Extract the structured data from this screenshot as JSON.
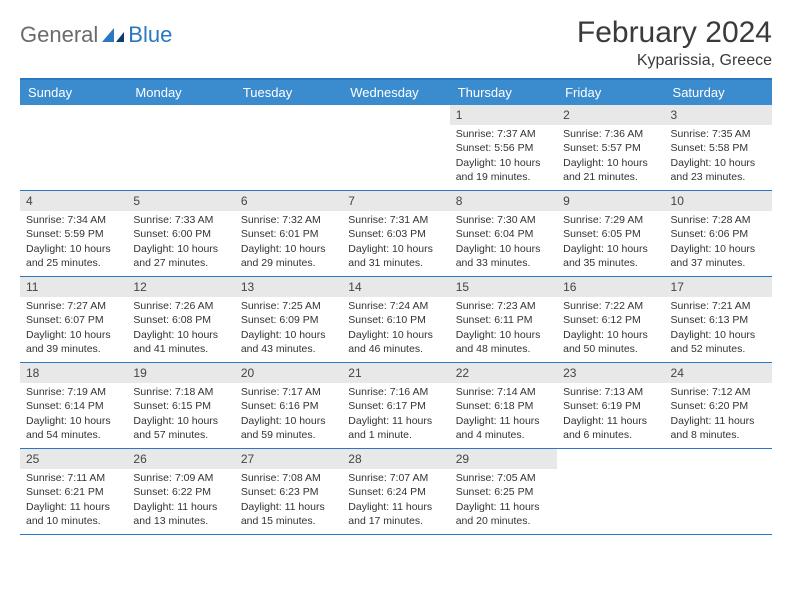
{
  "brand": {
    "text1": "General",
    "text2": "Blue"
  },
  "title": "February 2024",
  "subtitle": "Kyparissia, Greece",
  "colors": {
    "header_bg": "#3a8ccf",
    "header_text": "#ffffff",
    "rule": "#2b78c2",
    "daynum_bg": "#e8e8e8",
    "body_text": "#333333",
    "title_text": "#3a3a3a",
    "logo_gray": "#6b6b6b",
    "logo_blue": "#2b78c2"
  },
  "dayNames": [
    "Sunday",
    "Monday",
    "Tuesday",
    "Wednesday",
    "Thursday",
    "Friday",
    "Saturday"
  ],
  "weeks": [
    [
      {
        "day": "",
        "sunrise": "",
        "sunset": "",
        "daylight": ""
      },
      {
        "day": "",
        "sunrise": "",
        "sunset": "",
        "daylight": ""
      },
      {
        "day": "",
        "sunrise": "",
        "sunset": "",
        "daylight": ""
      },
      {
        "day": "",
        "sunrise": "",
        "sunset": "",
        "daylight": ""
      },
      {
        "day": "1",
        "sunrise": "Sunrise: 7:37 AM",
        "sunset": "Sunset: 5:56 PM",
        "daylight": "Daylight: 10 hours and 19 minutes."
      },
      {
        "day": "2",
        "sunrise": "Sunrise: 7:36 AM",
        "sunset": "Sunset: 5:57 PM",
        "daylight": "Daylight: 10 hours and 21 minutes."
      },
      {
        "day": "3",
        "sunrise": "Sunrise: 7:35 AM",
        "sunset": "Sunset: 5:58 PM",
        "daylight": "Daylight: 10 hours and 23 minutes."
      }
    ],
    [
      {
        "day": "4",
        "sunrise": "Sunrise: 7:34 AM",
        "sunset": "Sunset: 5:59 PM",
        "daylight": "Daylight: 10 hours and 25 minutes."
      },
      {
        "day": "5",
        "sunrise": "Sunrise: 7:33 AM",
        "sunset": "Sunset: 6:00 PM",
        "daylight": "Daylight: 10 hours and 27 minutes."
      },
      {
        "day": "6",
        "sunrise": "Sunrise: 7:32 AM",
        "sunset": "Sunset: 6:01 PM",
        "daylight": "Daylight: 10 hours and 29 minutes."
      },
      {
        "day": "7",
        "sunrise": "Sunrise: 7:31 AM",
        "sunset": "Sunset: 6:03 PM",
        "daylight": "Daylight: 10 hours and 31 minutes."
      },
      {
        "day": "8",
        "sunrise": "Sunrise: 7:30 AM",
        "sunset": "Sunset: 6:04 PM",
        "daylight": "Daylight: 10 hours and 33 minutes."
      },
      {
        "day": "9",
        "sunrise": "Sunrise: 7:29 AM",
        "sunset": "Sunset: 6:05 PM",
        "daylight": "Daylight: 10 hours and 35 minutes."
      },
      {
        "day": "10",
        "sunrise": "Sunrise: 7:28 AM",
        "sunset": "Sunset: 6:06 PM",
        "daylight": "Daylight: 10 hours and 37 minutes."
      }
    ],
    [
      {
        "day": "11",
        "sunrise": "Sunrise: 7:27 AM",
        "sunset": "Sunset: 6:07 PM",
        "daylight": "Daylight: 10 hours and 39 minutes."
      },
      {
        "day": "12",
        "sunrise": "Sunrise: 7:26 AM",
        "sunset": "Sunset: 6:08 PM",
        "daylight": "Daylight: 10 hours and 41 minutes."
      },
      {
        "day": "13",
        "sunrise": "Sunrise: 7:25 AM",
        "sunset": "Sunset: 6:09 PM",
        "daylight": "Daylight: 10 hours and 43 minutes."
      },
      {
        "day": "14",
        "sunrise": "Sunrise: 7:24 AM",
        "sunset": "Sunset: 6:10 PM",
        "daylight": "Daylight: 10 hours and 46 minutes."
      },
      {
        "day": "15",
        "sunrise": "Sunrise: 7:23 AM",
        "sunset": "Sunset: 6:11 PM",
        "daylight": "Daylight: 10 hours and 48 minutes."
      },
      {
        "day": "16",
        "sunrise": "Sunrise: 7:22 AM",
        "sunset": "Sunset: 6:12 PM",
        "daylight": "Daylight: 10 hours and 50 minutes."
      },
      {
        "day": "17",
        "sunrise": "Sunrise: 7:21 AM",
        "sunset": "Sunset: 6:13 PM",
        "daylight": "Daylight: 10 hours and 52 minutes."
      }
    ],
    [
      {
        "day": "18",
        "sunrise": "Sunrise: 7:19 AM",
        "sunset": "Sunset: 6:14 PM",
        "daylight": "Daylight: 10 hours and 54 minutes."
      },
      {
        "day": "19",
        "sunrise": "Sunrise: 7:18 AM",
        "sunset": "Sunset: 6:15 PM",
        "daylight": "Daylight: 10 hours and 57 minutes."
      },
      {
        "day": "20",
        "sunrise": "Sunrise: 7:17 AM",
        "sunset": "Sunset: 6:16 PM",
        "daylight": "Daylight: 10 hours and 59 minutes."
      },
      {
        "day": "21",
        "sunrise": "Sunrise: 7:16 AM",
        "sunset": "Sunset: 6:17 PM",
        "daylight": "Daylight: 11 hours and 1 minute."
      },
      {
        "day": "22",
        "sunrise": "Sunrise: 7:14 AM",
        "sunset": "Sunset: 6:18 PM",
        "daylight": "Daylight: 11 hours and 4 minutes."
      },
      {
        "day": "23",
        "sunrise": "Sunrise: 7:13 AM",
        "sunset": "Sunset: 6:19 PM",
        "daylight": "Daylight: 11 hours and 6 minutes."
      },
      {
        "day": "24",
        "sunrise": "Sunrise: 7:12 AM",
        "sunset": "Sunset: 6:20 PM",
        "daylight": "Daylight: 11 hours and 8 minutes."
      }
    ],
    [
      {
        "day": "25",
        "sunrise": "Sunrise: 7:11 AM",
        "sunset": "Sunset: 6:21 PM",
        "daylight": "Daylight: 11 hours and 10 minutes."
      },
      {
        "day": "26",
        "sunrise": "Sunrise: 7:09 AM",
        "sunset": "Sunset: 6:22 PM",
        "daylight": "Daylight: 11 hours and 13 minutes."
      },
      {
        "day": "27",
        "sunrise": "Sunrise: 7:08 AM",
        "sunset": "Sunset: 6:23 PM",
        "daylight": "Daylight: 11 hours and 15 minutes."
      },
      {
        "day": "28",
        "sunrise": "Sunrise: 7:07 AM",
        "sunset": "Sunset: 6:24 PM",
        "daylight": "Daylight: 11 hours and 17 minutes."
      },
      {
        "day": "29",
        "sunrise": "Sunrise: 7:05 AM",
        "sunset": "Sunset: 6:25 PM",
        "daylight": "Daylight: 11 hours and 20 minutes."
      },
      {
        "day": "",
        "sunrise": "",
        "sunset": "",
        "daylight": ""
      },
      {
        "day": "",
        "sunrise": "",
        "sunset": "",
        "daylight": ""
      }
    ]
  ]
}
